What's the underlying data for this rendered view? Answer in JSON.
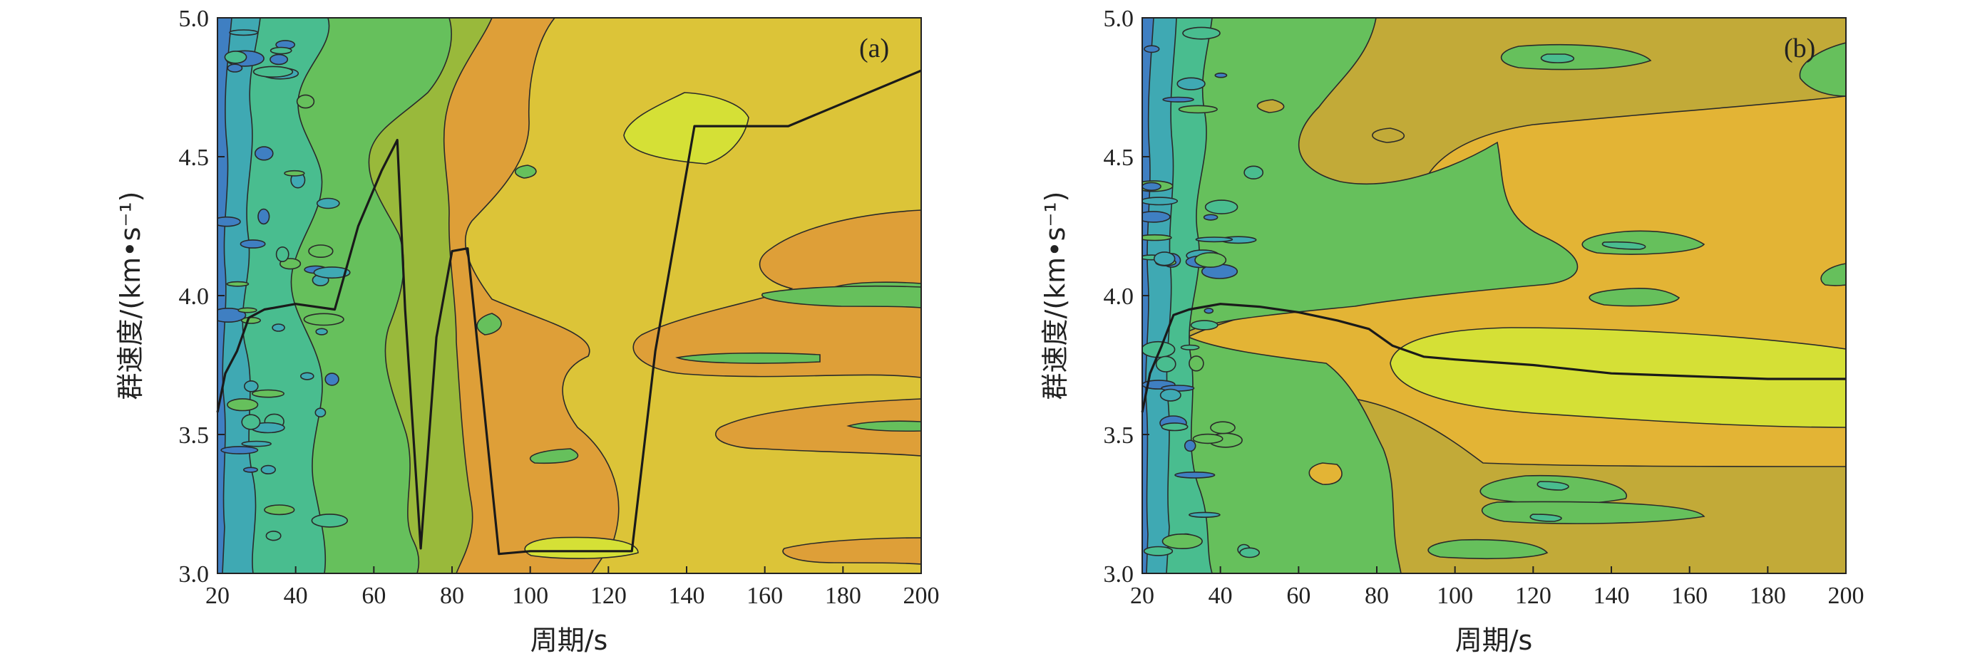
{
  "colors": {
    "level0": "#3f7fc2",
    "level1": "#3fa9b3",
    "level2": "#49bd8f",
    "level3": "#66c05c",
    "level4": "#99b93b",
    "level5": "#c2aa38",
    "level6": "#de9f38",
    "level7": "#e3b435",
    "level8": "#dcc438",
    "level9": "#d5e036"
  },
  "chart_data": [
    {
      "type": "heatmap",
      "panel_label": "(a)",
      "xlabel": "周期/s",
      "ylabel": "群速度/(km•s⁻¹)",
      "xlim": [
        20,
        200
      ],
      "ylim": [
        3.0,
        5.0
      ],
      "xticks": [
        "20",
        "40",
        "60",
        "80",
        "100",
        "120",
        "140",
        "160",
        "180",
        "200"
      ],
      "yticks": [
        "3.0",
        "3.5",
        "4.0",
        "4.5",
        "5.0"
      ],
      "dispersion_curve": {
        "x": [
          20,
          22,
          25,
          28,
          32,
          40,
          50,
          56,
          62,
          66,
          68,
          72,
          76,
          80,
          84,
          92,
          100,
          110,
          126,
          132,
          142,
          150,
          166,
          200
        ],
        "y": [
          3.58,
          3.72,
          3.8,
          3.92,
          3.95,
          3.97,
          3.95,
          4.25,
          4.45,
          4.56,
          3.95,
          3.09,
          3.85,
          4.16,
          4.17,
          3.07,
          3.08,
          3.08,
          3.08,
          3.8,
          4.61,
          4.61,
          4.61,
          4.81
        ]
      }
    },
    {
      "type": "heatmap",
      "panel_label": "(b)",
      "xlabel": "周期/s",
      "ylabel": "群速度/(km•s⁻¹)",
      "xlim": [
        20,
        200
      ],
      "ylim": [
        3.0,
        5.0
      ],
      "xticks": [
        "20",
        "40",
        "60",
        "80",
        "100",
        "120",
        "140",
        "160",
        "180",
        "200"
      ],
      "yticks": [
        "3.0",
        "3.5",
        "4.0",
        "4.5",
        "5.0"
      ],
      "dispersion_curve": {
        "x": [
          20,
          22,
          25,
          28,
          32,
          40,
          50,
          60,
          70,
          78,
          84,
          92,
          100,
          110,
          120,
          140,
          160,
          180,
          200
        ],
        "y": [
          3.58,
          3.72,
          3.82,
          3.93,
          3.95,
          3.97,
          3.96,
          3.94,
          3.91,
          3.88,
          3.82,
          3.78,
          3.77,
          3.76,
          3.75,
          3.72,
          3.71,
          3.7,
          3.7
        ]
      }
    }
  ]
}
